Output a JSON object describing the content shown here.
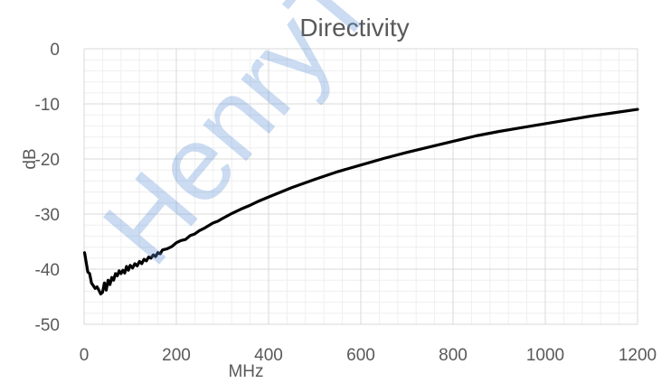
{
  "chart_data": {
    "type": "line",
    "title": "Directivity",
    "xlabel": "MHz",
    "ylabel": "dB",
    "xlim": [
      0,
      1200
    ],
    "ylim": [
      -50,
      0
    ],
    "x_ticks": [
      0,
      200,
      400,
      600,
      800,
      1000,
      1200
    ],
    "y_ticks": [
      0,
      -10,
      -20,
      -30,
      -40,
      -50
    ],
    "grid": {
      "major": true,
      "minor": true
    },
    "legend": "none",
    "series": [
      {
        "color": "#000000",
        "x": [
          1,
          5,
          8,
          12,
          16,
          20,
          24,
          28,
          32,
          36,
          40,
          44,
          48,
          52,
          56,
          60,
          64,
          68,
          72,
          76,
          80,
          84,
          88,
          92,
          96,
          100,
          105,
          110,
          115,
          120,
          125,
          130,
          135,
          140,
          145,
          150,
          155,
          160,
          165,
          170,
          180,
          190,
          200,
          210,
          220,
          230,
          240,
          250,
          260,
          270,
          280,
          290,
          300,
          320,
          340,
          360,
          380,
          400,
          450,
          500,
          550,
          600,
          650,
          700,
          750,
          800,
          850,
          900,
          950,
          1000,
          1050,
          1100,
          1150,
          1200
        ],
        "y": [
          -37.0,
          -39.0,
          -40.5,
          -40.8,
          -42.5,
          -43.0,
          -43.5,
          -43.2,
          -43.8,
          -44.5,
          -44.2,
          -42.5,
          -43.8,
          -42.0,
          -42.8,
          -41.5,
          -42.0,
          -40.8,
          -41.2,
          -40.3,
          -40.8,
          -40.2,
          -40.7,
          -39.5,
          -40.2,
          -39.3,
          -39.8,
          -39.0,
          -39.4,
          -38.6,
          -39.0,
          -38.2,
          -38.5,
          -37.8,
          -38.0,
          -37.4,
          -37.7,
          -37.0,
          -37.2,
          -36.5,
          -36.3,
          -35.9,
          -35.2,
          -34.8,
          -34.6,
          -33.9,
          -33.6,
          -33.0,
          -32.6,
          -32.1,
          -31.6,
          -31.3,
          -30.8,
          -29.9,
          -29.1,
          -28.4,
          -27.6,
          -26.9,
          -25.2,
          -23.7,
          -22.3,
          -21.1,
          -19.9,
          -18.8,
          -17.8,
          -16.8,
          -15.8,
          -15.0,
          -14.3,
          -13.6,
          -12.9,
          -12.2,
          -11.6,
          -11.0
        ]
      }
    ]
  },
  "watermark": {
    "text": "HenryTec"
  }
}
